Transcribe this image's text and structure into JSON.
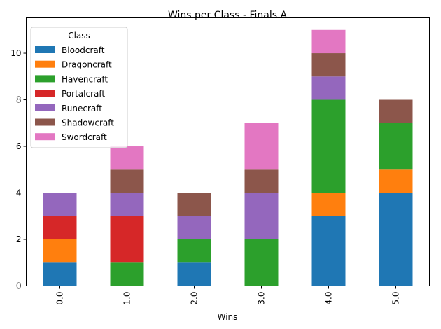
{
  "chart_data": {
    "type": "bar",
    "stacked": true,
    "title": "Wins per Class - Finals A",
    "xlabel": "Wins",
    "ylabel": "",
    "categories": [
      "0.0",
      "1.0",
      "2.0",
      "3.0",
      "4.0",
      "5.0"
    ],
    "ylim": [
      0,
      11.55
    ],
    "yticks": [
      0,
      2,
      4,
      6,
      8,
      10
    ],
    "grid": false,
    "legend": {
      "title": "Class",
      "placement": "top-left"
    },
    "series": [
      {
        "name": "Bloodcraft",
        "color": "#1f77b4",
        "values": [
          1,
          0,
          1,
          0,
          3,
          4
        ]
      },
      {
        "name": "Dragoncraft",
        "color": "#ff7f0e",
        "values": [
          1,
          0,
          0,
          0,
          1,
          1
        ]
      },
      {
        "name": "Havencraft",
        "color": "#2ca02c",
        "values": [
          0,
          1,
          1,
          2,
          4,
          2
        ]
      },
      {
        "name": "Portalcraft",
        "color": "#d62728",
        "values": [
          1,
          2,
          0,
          0,
          0,
          0
        ]
      },
      {
        "name": "Runecraft",
        "color": "#9467bd",
        "values": [
          1,
          1,
          1,
          2,
          1,
          0
        ]
      },
      {
        "name": "Shadowcraft",
        "color": "#8c564b",
        "values": [
          0,
          1,
          1,
          1,
          1,
          1
        ]
      },
      {
        "name": "Swordcraft",
        "color": "#e377c2",
        "values": [
          0,
          1,
          0,
          2,
          1,
          0
        ]
      }
    ]
  }
}
